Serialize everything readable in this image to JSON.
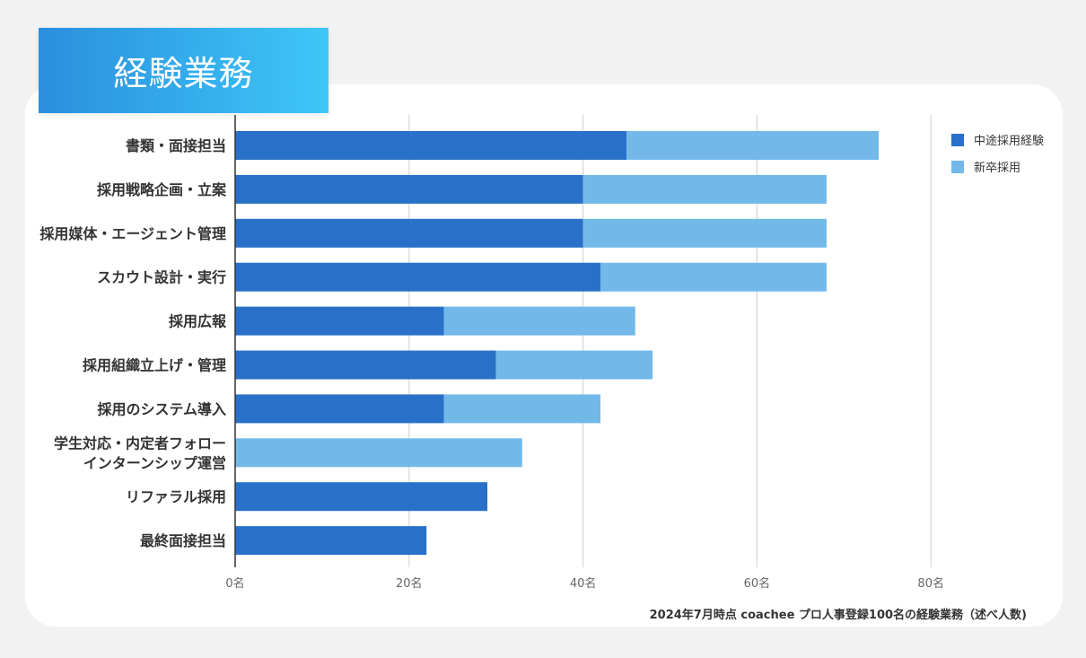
{
  "title": "経験業務",
  "source_note": "2024年7月時点 coachee プロ人事登録100名の経験業務（述べ人数)",
  "colors": {
    "mid_career": "#2970c8",
    "new_grad": "#72b9ea",
    "title_start": "#2a8fde",
    "title_end": "#3ec7f7"
  },
  "chart_data": {
    "type": "bar",
    "orientation": "horizontal",
    "stacked": true,
    "title": "経験業務",
    "xlabel": "",
    "ylabel": "",
    "xlim": [
      0,
      80
    ],
    "xticks": [
      0,
      20,
      40,
      60,
      80
    ],
    "tick_suffix": "名",
    "grid": true,
    "legend_position": "top-right",
    "categories": [
      "書類・面接担当",
      "採用戦略企画・立案",
      "採用媒体・エージェント管理",
      "スカウト設計・実行",
      "採用広報",
      "採用組織立上げ・管理",
      "採用のシステム導入",
      "学生対応・内定者フォロー\nインターンシップ運営",
      "リファラル採用",
      "最終面接担当"
    ],
    "series": [
      {
        "name": "中途採用経験",
        "values": [
          45,
          40,
          40,
          42,
          24,
          30,
          24,
          0,
          29,
          22
        ]
      },
      {
        "name": "新卒採用",
        "values": [
          29,
          28,
          28,
          26,
          22,
          18,
          18,
          33,
          0,
          0
        ]
      }
    ]
  }
}
